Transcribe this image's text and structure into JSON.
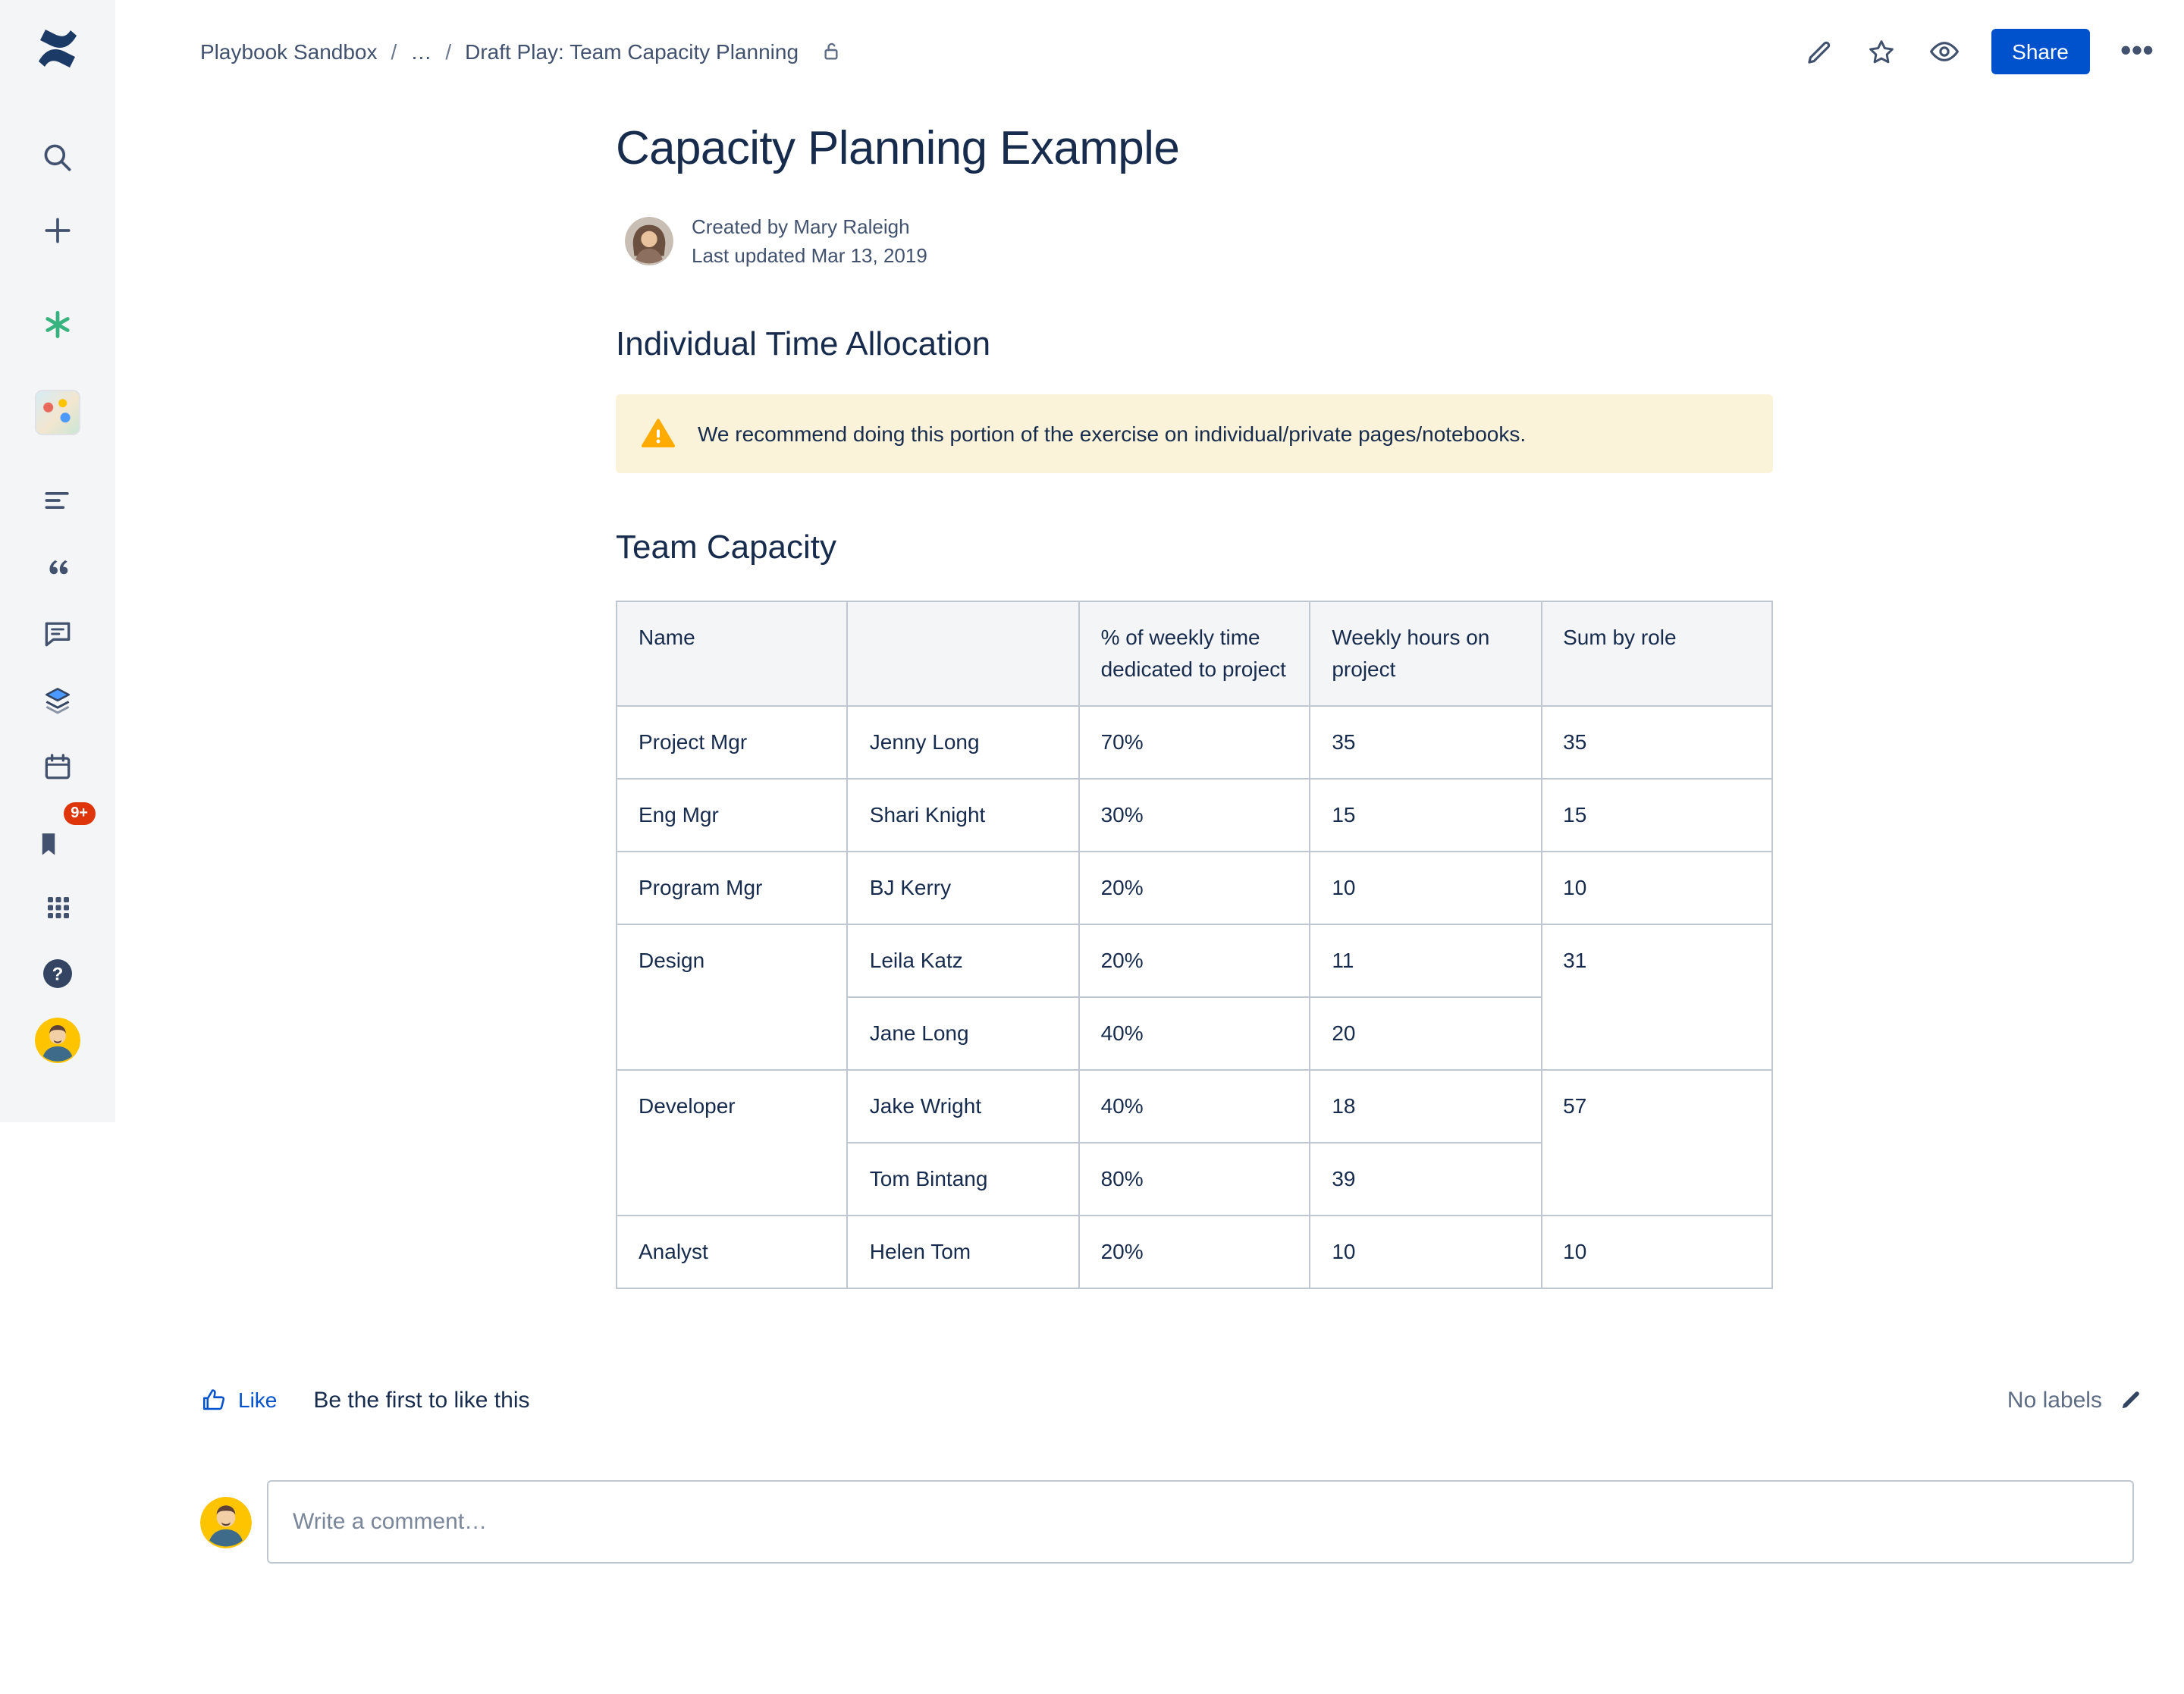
{
  "colors": {
    "primary_blue": "#0052CC",
    "text_dark": "#172B4D",
    "text_gray": "#42526E",
    "sidebar_bg": "#F4F5F7",
    "table_border": "#C1C7D0",
    "table_header_bg": "#F4F5F7",
    "warning_bg": "#FAF3D9",
    "warning_icon": "#FFAB00",
    "badge_red": "#DE350B"
  },
  "sidebar": {
    "notification_badge": "9+"
  },
  "header": {
    "breadcrumb": [
      "Playbook Sandbox",
      "…",
      "Draft Play: Team Capacity Planning"
    ],
    "separator": "/",
    "share_label": "Share",
    "more_glyph": "•••"
  },
  "page": {
    "title": "Capacity Planning Example",
    "byline": {
      "created": "Created by Mary Raleigh",
      "updated": "Last updated Mar 13, 2019"
    },
    "section_individual": "Individual Time Allocation",
    "warning_text": "We recommend doing this portion of the exercise on individual/private pages/notebooks.",
    "section_team": "Team Capacity"
  },
  "table": {
    "headers": [
      "Name",
      "",
      "% of weekly time dedicated to project",
      "Weekly hours on project",
      "Sum by role"
    ],
    "rows": [
      {
        "cells": [
          {
            "t": "Project Mgr"
          },
          {
            "t": "Jenny Long"
          },
          {
            "t": "70%"
          },
          {
            "t": "35"
          },
          {
            "t": "35"
          }
        ]
      },
      {
        "cells": [
          {
            "t": "Eng Mgr"
          },
          {
            "t": "Shari Knight"
          },
          {
            "t": "30%"
          },
          {
            "t": "15"
          },
          {
            "t": "15"
          }
        ]
      },
      {
        "cells": [
          {
            "t": "Program Mgr"
          },
          {
            "t": "BJ Kerry"
          },
          {
            "t": "20%"
          },
          {
            "t": "10"
          },
          {
            "t": "10"
          }
        ]
      },
      {
        "cells": [
          {
            "t": "Design",
            "rowspan": 2
          },
          {
            "t": "Leila Katz"
          },
          {
            "t": "20%"
          },
          {
            "t": "11"
          },
          {
            "t": "31",
            "rowspan": 2
          }
        ]
      },
      {
        "cells": [
          {
            "t": "Jane Long"
          },
          {
            "t": "40%"
          },
          {
            "t": "20"
          }
        ]
      },
      {
        "cells": [
          {
            "t": "Developer",
            "rowspan": 2
          },
          {
            "t": "Jake Wright"
          },
          {
            "t": "40%"
          },
          {
            "t": "18"
          },
          {
            "t": "57",
            "rowspan": 2
          }
        ]
      },
      {
        "cells": [
          {
            "t": "Tom Bintang"
          },
          {
            "t": "80%"
          },
          {
            "t": "39"
          }
        ]
      },
      {
        "cells": [
          {
            "t": "Analyst"
          },
          {
            "t": "Helen Tom"
          },
          {
            "t": "20%"
          },
          {
            "t": "10"
          },
          {
            "t": "10"
          }
        ]
      }
    ]
  },
  "footer": {
    "like_label": "Like",
    "like_hint": "Be the first to like this",
    "labels_text": "No labels"
  },
  "comment": {
    "placeholder": "Write a comment…"
  }
}
